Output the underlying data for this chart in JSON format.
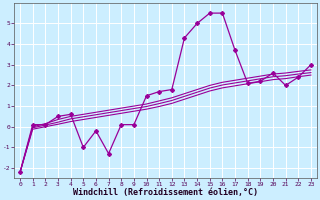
{
  "xlabel": "Windchill (Refroidissement éolien,°C)",
  "ylabel": "",
  "background_color": "#cceeff",
  "grid_color": "#aaddee",
  "line_color": "#990099",
  "x": [
    0,
    1,
    2,
    3,
    4,
    5,
    6,
    7,
    8,
    9,
    10,
    11,
    12,
    13,
    14,
    15,
    16,
    17,
    18,
    19,
    20,
    21,
    22,
    23
  ],
  "y_main": [
    -2.2,
    0.1,
    0.1,
    0.5,
    0.6,
    -1.0,
    -0.2,
    -1.3,
    0.1,
    0.1,
    1.5,
    1.7,
    1.8,
    4.3,
    5.0,
    5.5,
    5.5,
    3.7,
    2.1,
    2.2,
    2.6,
    2.0,
    2.4,
    3.0
  ],
  "y_trend1": [
    -2.2,
    0.0,
    0.15,
    0.35,
    0.5,
    0.6,
    0.7,
    0.8,
    0.9,
    1.0,
    1.1,
    1.25,
    1.4,
    1.6,
    1.8,
    2.0,
    2.15,
    2.25,
    2.35,
    2.45,
    2.55,
    2.6,
    2.68,
    2.75
  ],
  "y_trend2": [
    -2.2,
    -0.05,
    0.08,
    0.22,
    0.38,
    0.48,
    0.58,
    0.68,
    0.78,
    0.88,
    0.98,
    1.12,
    1.27,
    1.47,
    1.67,
    1.87,
    2.02,
    2.12,
    2.22,
    2.32,
    2.42,
    2.47,
    2.55,
    2.62
  ],
  "y_trend3": [
    -2.2,
    -0.12,
    0.0,
    0.12,
    0.25,
    0.35,
    0.45,
    0.55,
    0.65,
    0.75,
    0.85,
    0.98,
    1.13,
    1.33,
    1.53,
    1.73,
    1.88,
    1.98,
    2.08,
    2.18,
    2.28,
    2.33,
    2.42,
    2.5
  ],
  "ylim": [
    -2.5,
    6.0
  ],
  "xlim": [
    -0.5,
    23.5
  ],
  "yticks": [
    -2,
    -1,
    0,
    1,
    2,
    3,
    4,
    5
  ],
  "xticks": [
    0,
    1,
    2,
    3,
    4,
    5,
    6,
    7,
    8,
    9,
    10,
    11,
    12,
    13,
    14,
    15,
    16,
    17,
    18,
    19,
    20,
    21,
    22,
    23
  ],
  "tick_fontsize": 4.5,
  "xlabel_fontsize": 6.0,
  "marker": "D",
  "markersize": 2.0
}
